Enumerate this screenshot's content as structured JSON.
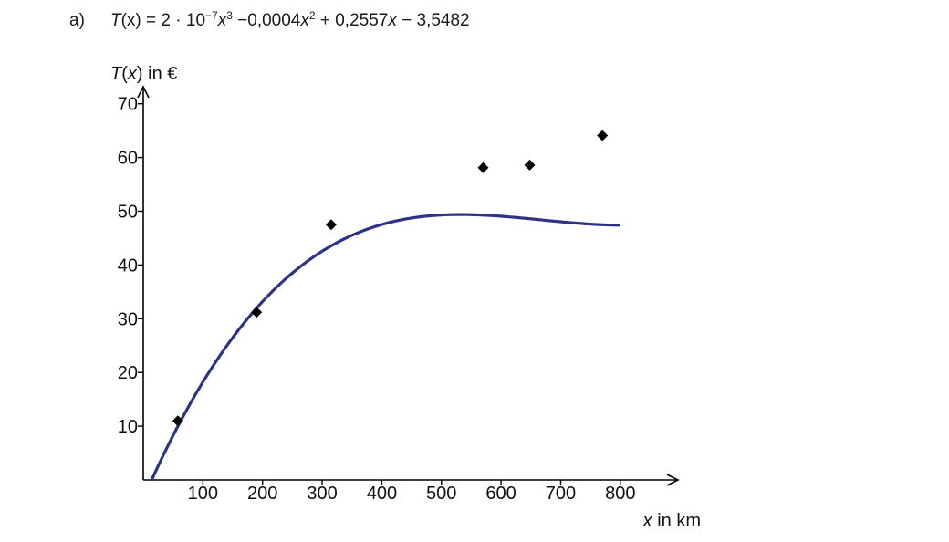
{
  "task": {
    "label": "a)",
    "formula": {
      "lhs": "T",
      "lhs_arg": "(x)",
      "part1": " = 2 · 10",
      "exp1": "−7",
      "var1": "x",
      "exp2": "3",
      "part2": " −0,0004",
      "var2": "x",
      "exp3": "2",
      "part3": " + 0,2557",
      "var3": "x",
      "part4": " − 3,5482"
    }
  },
  "chart_data": {
    "type": "scatter",
    "title": "",
    "ylabel": {
      "var": "T",
      "paren_open": "(",
      "arg": "x",
      "paren_close": ")",
      "unit": " in €"
    },
    "xlabel": {
      "var": "x",
      "unit": " in km"
    },
    "xlim": [
      0,
      900
    ],
    "ylim": [
      0,
      70
    ],
    "x_ticks": [
      100,
      200,
      300,
      400,
      500,
      600,
      700,
      800
    ],
    "y_ticks": [
      10,
      20,
      30,
      40,
      50,
      60,
      70
    ],
    "grid": false,
    "legend": "none",
    "points": [
      {
        "x": 58,
        "y": 11
      },
      {
        "x": 190,
        "y": 31.2
      },
      {
        "x": 315,
        "y": 47.5
      },
      {
        "x": 570,
        "y": 58.1
      },
      {
        "x": 648,
        "y": 58.6
      },
      {
        "x": 770,
        "y": 64.1
      }
    ],
    "curve": {
      "a3": 2e-07,
      "a2": -0.0004,
      "a1": 0.2557,
      "a0": -3.5482,
      "x_range": [
        13.9,
        800
      ]
    },
    "colors": {
      "curve": "#2e3286",
      "points": "#000000",
      "axes": "#000000"
    }
  }
}
